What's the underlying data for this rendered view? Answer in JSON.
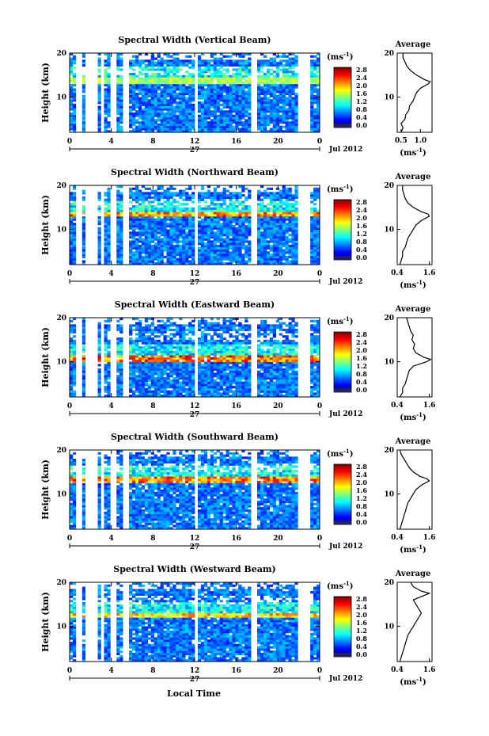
{
  "figure": {
    "x_axis_label": "Local Time",
    "x_ticks": [
      "0",
      "4",
      "8",
      "12",
      "16",
      "20",
      "0"
    ],
    "day_label": "27",
    "date_label": "Jul 2012",
    "y_axis_label": "Height (km)",
    "y_ticks": [
      "20",
      "10"
    ],
    "colorbar_unit": "(ms",
    "colorbar_unit_exp": "-1",
    "colorbar_unit_close": ")",
    "colorbar_ticks": [
      "2.8",
      "2.4",
      "2.0",
      "1.6",
      "1.2",
      "0.8",
      "0.4",
      "0.0"
    ],
    "average_title": "Average",
    "average_xlabel": "(ms",
    "average_xlabel_exp": "-1",
    "average_xlabel_close": ")"
  },
  "chart_data": [
    {
      "type": "heatmap",
      "title": "Spectral Width (Vertical Beam)",
      "xlabel": "",
      "ylabel": "Height (km)",
      "xlim": [
        0,
        24
      ],
      "ylim": [
        2,
        20
      ],
      "colorbar": {
        "range": [
          0.0,
          3.0
        ],
        "unit": "ms-1"
      },
      "high_band_km": [
        13,
        14.5
      ],
      "band_intensity": 0.45,
      "gaps_hours": [
        [
          0.7,
          1.1
        ],
        [
          1.6,
          2.6
        ],
        [
          3.0,
          3.4
        ],
        [
          3.9,
          4.4
        ],
        [
          5.0,
          5.6
        ],
        [
          12.0,
          12.3
        ],
        [
          17.5,
          18.0
        ],
        [
          21.9,
          23.0
        ]
      ],
      "average_profile": {
        "title": "Average",
        "xlabel": "(ms-1)",
        "x_ticks": [
          "0.5",
          "1.0"
        ],
        "xlim": [
          0.4,
          1.3
        ],
        "y_ticks": [
          "20",
          "10"
        ],
        "ylim": [
          2,
          20
        ],
        "height_km": [
          2,
          3,
          4,
          5,
          6,
          7,
          8,
          9,
          10,
          11,
          12,
          13,
          13.5,
          14,
          15,
          16,
          17,
          18,
          19,
          20
        ],
        "value": [
          0.5,
          0.55,
          0.5,
          0.6,
          0.62,
          0.7,
          0.72,
          0.8,
          0.85,
          0.9,
          1.0,
          1.2,
          1.25,
          1.1,
          0.9,
          0.75,
          0.65,
          0.6,
          0.55,
          0.55
        ]
      }
    },
    {
      "type": "heatmap",
      "title": "Spectral Width (Northward Beam)",
      "xlabel": "",
      "ylabel": "Height (km)",
      "xlim": [
        0,
        24
      ],
      "ylim": [
        2,
        20
      ],
      "colorbar": {
        "range": [
          0.0,
          3.0
        ],
        "unit": "ms-1"
      },
      "high_band_km": [
        12.8,
        14
      ],
      "band_intensity": 0.8,
      "gaps_hours": [
        [
          0.7,
          1.1
        ],
        [
          1.6,
          2.6
        ],
        [
          3.0,
          3.4
        ],
        [
          3.9,
          4.4
        ],
        [
          5.0,
          5.6
        ],
        [
          12.0,
          12.3
        ],
        [
          17.5,
          18.0
        ],
        [
          21.9,
          23.0
        ]
      ],
      "average_profile": {
        "title": "Average",
        "xlabel": "(ms-1)",
        "x_ticks": [
          "0.4",
          "1.6"
        ],
        "xlim": [
          0.4,
          1.7
        ],
        "y_ticks": [
          "20",
          "10"
        ],
        "ylim": [
          2,
          20
        ],
        "height_km": [
          2,
          3,
          4,
          5,
          6,
          7,
          8,
          9,
          10,
          11,
          12,
          13,
          13.5,
          14,
          15,
          16,
          17,
          18,
          19,
          20
        ],
        "value": [
          0.5,
          0.55,
          0.6,
          0.6,
          0.7,
          0.75,
          0.8,
          0.9,
          1.0,
          1.1,
          1.3,
          1.6,
          1.55,
          1.3,
          1.0,
          0.8,
          0.7,
          0.65,
          0.6,
          0.6
        ]
      }
    },
    {
      "type": "heatmap",
      "title": "Spectral Width (Eastward Beam)",
      "xlabel": "",
      "ylabel": "Height (km)",
      "xlim": [
        0,
        24
      ],
      "ylim": [
        2,
        20
      ],
      "colorbar": {
        "range": [
          0.0,
          3.0
        ],
        "unit": "ms-1"
      },
      "high_band_km": [
        10,
        11.5
      ],
      "band_intensity": 0.9,
      "gaps_hours": [
        [
          0.7,
          1.1
        ],
        [
          1.6,
          2.6
        ],
        [
          3.0,
          3.4
        ],
        [
          3.9,
          4.4
        ],
        [
          5.0,
          5.6
        ],
        [
          12.0,
          12.3
        ],
        [
          17.5,
          18.0
        ],
        [
          21.9,
          23.0
        ]
      ],
      "average_profile": {
        "title": "Average",
        "xlabel": "(ms-1)",
        "x_ticks": [
          "0.4",
          "1.6"
        ],
        "xlim": [
          0.4,
          1.7
        ],
        "y_ticks": [
          "20",
          "10"
        ],
        "ylim": [
          2,
          20
        ],
        "height_km": [
          2,
          3,
          4,
          5,
          6,
          7,
          8,
          9,
          10,
          10.5,
          11,
          12,
          13,
          14,
          15,
          16,
          17,
          18,
          19,
          20
        ],
        "value": [
          0.5,
          0.6,
          0.6,
          0.7,
          0.75,
          0.8,
          0.85,
          1.0,
          1.5,
          1.65,
          1.4,
          1.1,
          1.0,
          1.05,
          0.95,
          1.0,
          0.9,
          0.85,
          0.8,
          0.75
        ]
      }
    },
    {
      "type": "heatmap",
      "title": "Spectral Width (Southward Beam)",
      "xlabel": "",
      "ylabel": "Height (km)",
      "xlim": [
        0,
        24
      ],
      "ylim": [
        2,
        20
      ],
      "colorbar": {
        "range": [
          0.0,
          3.0
        ],
        "unit": "ms-1"
      },
      "high_band_km": [
        12.5,
        14
      ],
      "band_intensity": 0.85,
      "gaps_hours": [
        [
          0.7,
          1.1
        ],
        [
          1.6,
          2.6
        ],
        [
          3.0,
          3.4
        ],
        [
          3.9,
          4.4
        ],
        [
          5.0,
          5.6
        ],
        [
          12.0,
          12.3
        ],
        [
          17.5,
          18.0
        ],
        [
          21.9,
          23.0
        ]
      ],
      "average_profile": {
        "title": "Average",
        "xlabel": "(ms-1)",
        "x_ticks": [
          "0.4",
          "1.6"
        ],
        "xlim": [
          0.4,
          1.7
        ],
        "y_ticks": [
          "20",
          "10"
        ],
        "ylim": [
          2,
          20
        ],
        "height_km": [
          2,
          3,
          4,
          5,
          6,
          7,
          8,
          9,
          10,
          11,
          12,
          13,
          13.5,
          14,
          15,
          16,
          17,
          18,
          19,
          20
        ],
        "value": [
          0.5,
          0.55,
          0.6,
          0.65,
          0.7,
          0.75,
          0.8,
          0.9,
          1.0,
          1.1,
          1.3,
          1.6,
          1.5,
          1.25,
          1.0,
          0.85,
          0.75,
          0.65,
          0.55,
          0.5
        ]
      }
    },
    {
      "type": "heatmap",
      "title": "Spectral Width (Westward Beam)",
      "xlabel": "Local Time",
      "ylabel": "Height (km)",
      "xlim": [
        0,
        24
      ],
      "ylim": [
        2,
        20
      ],
      "colorbar": {
        "range": [
          0.0,
          3.0
        ],
        "unit": "ms-1"
      },
      "high_band_km": [
        12,
        13
      ],
      "band_intensity": 0.7,
      "gaps_hours": [
        [
          0.7,
          1.1
        ],
        [
          1.6,
          2.6
        ],
        [
          3.0,
          3.4
        ],
        [
          3.9,
          4.4
        ],
        [
          5.0,
          5.6
        ],
        [
          12.0,
          12.3
        ],
        [
          17.5,
          18.0
        ],
        [
          21.9,
          23.0
        ]
      ],
      "average_profile": {
        "title": "Average",
        "xlabel": "(ms-1)",
        "x_ticks": [
          "0.4",
          "1.6"
        ],
        "xlim": [
          0.4,
          1.7
        ],
        "y_ticks": [
          "20",
          "10"
        ],
        "ylim": [
          2,
          20
        ],
        "height_km": [
          2,
          3,
          4,
          5,
          6,
          7,
          8,
          9,
          10,
          11,
          12,
          13,
          14,
          15,
          16,
          17,
          17.5,
          18,
          19,
          20
        ],
        "value": [
          0.5,
          0.55,
          0.6,
          0.65,
          0.7,
          0.75,
          0.8,
          0.9,
          1.0,
          1.1,
          1.2,
          1.3,
          1.2,
          1.1,
          1.0,
          1.4,
          1.6,
          1.3,
          1.0,
          0.9
        ]
      }
    }
  ]
}
